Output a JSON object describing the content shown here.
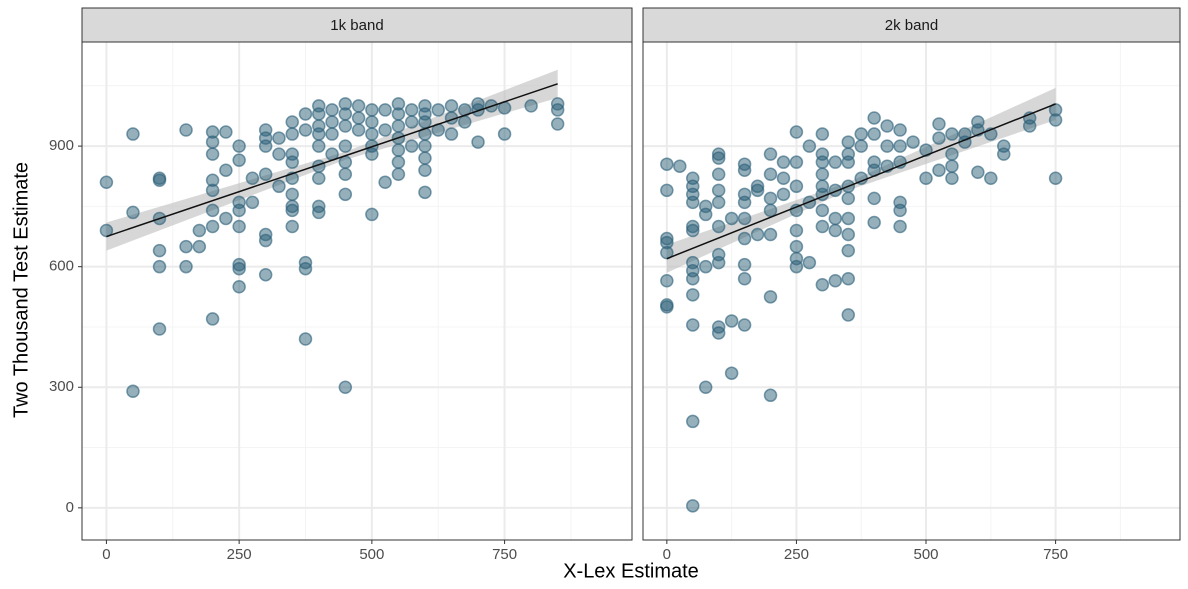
{
  "chart_data": {
    "type": "scatter",
    "xlabel": "X-Lex Estimate",
    "ylabel": "Two Thousand Test Estimate",
    "xlim": [
      -46,
      990
    ],
    "ylim": [
      -80,
      1159
    ],
    "xticks": [
      0,
      250,
      500,
      750
    ],
    "yticks": [
      0,
      300,
      600,
      900
    ],
    "minor_xgrid": [
      125,
      375,
      625,
      875
    ],
    "minor_ygrid": [
      150,
      450,
      750,
      1050
    ],
    "grid": true,
    "color": "#2b5f78",
    "fit_color": "#111111",
    "band_color": "#bdbdbd",
    "panels": [
      {
        "title": "1k band",
        "x": [
          0,
          0,
          50,
          50,
          50,
          100,
          100,
          100,
          100,
          100,
          100,
          150,
          150,
          150,
          175,
          175,
          200,
          200,
          200,
          200,
          200,
          200,
          200,
          200,
          225,
          225,
          225,
          250,
          250,
          250,
          250,
          250,
          250,
          250,
          250,
          275,
          275,
          300,
          300,
          300,
          300,
          300,
          300,
          300,
          325,
          325,
          325,
          350,
          350,
          350,
          350,
          350,
          350,
          350,
          350,
          350,
          375,
          375,
          375,
          375,
          375,
          400,
          400,
          400,
          400,
          400,
          400,
          400,
          400,
          400,
          425,
          425,
          425,
          425,
          450,
          450,
          450,
          450,
          450,
          450,
          450,
          450,
          475,
          475,
          475,
          500,
          500,
          500,
          500,
          500,
          500,
          525,
          525,
          525,
          550,
          550,
          550,
          550,
          550,
          550,
          550,
          575,
          575,
          575,
          600,
          600,
          600,
          600,
          600,
          600,
          600,
          600,
          625,
          625,
          650,
          650,
          650,
          675,
          675,
          700,
          700,
          700,
          725,
          750,
          750,
          800,
          850,
          850,
          850
        ],
        "y": [
          810,
          690,
          930,
          735,
          290,
          820,
          815,
          720,
          640,
          600,
          445,
          940,
          650,
          600,
          690,
          650,
          935,
          910,
          880,
          815,
          790,
          740,
          700,
          470,
          935,
          840,
          720,
          900,
          865,
          760,
          740,
          700,
          605,
          595,
          550,
          820,
          760,
          940,
          920,
          900,
          830,
          680,
          665,
          580,
          920,
          880,
          800,
          960,
          930,
          880,
          860,
          820,
          780,
          750,
          740,
          700,
          980,
          940,
          610,
          595,
          420,
          1000,
          980,
          950,
          930,
          900,
          850,
          820,
          750,
          735,
          990,
          960,
          930,
          880,
          1005,
          980,
          950,
          900,
          860,
          830,
          780,
          300,
          1000,
          970,
          940,
          990,
          960,
          930,
          900,
          880,
          730,
          990,
          940,
          810,
          1005,
          980,
          950,
          920,
          890,
          860,
          830,
          990,
          960,
          900,
          1000,
          980,
          960,
          930,
          900,
          870,
          840,
          785,
          990,
          940,
          1000,
          970,
          930,
          990,
          960,
          1005,
          990,
          910,
          1000,
          995,
          930,
          1000,
          1005,
          990,
          955
        ],
        "fit": {
          "x": [
            0,
            450,
            850
          ],
          "y": [
            675,
            876,
            1055
          ],
          "lower": [
            640,
            866,
            1020
          ],
          "upper": [
            710,
            886,
            1090
          ]
        }
      },
      {
        "title": "2k band",
        "x": [
          0,
          0,
          0,
          0,
          0,
          0,
          0,
          0,
          25,
          50,
          50,
          50,
          50,
          50,
          50,
          50,
          50,
          50,
          50,
          50,
          50,
          50,
          75,
          75,
          75,
          75,
          100,
          100,
          100,
          100,
          100,
          100,
          100,
          100,
          100,
          100,
          125,
          125,
          125,
          150,
          150,
          150,
          150,
          150,
          150,
          150,
          150,
          150,
          175,
          175,
          175,
          200,
          200,
          200,
          200,
          200,
          200,
          200,
          225,
          225,
          225,
          250,
          250,
          250,
          250,
          250,
          250,
          250,
          250,
          275,
          275,
          275,
          300,
          300,
          300,
          300,
          300,
          300,
          300,
          300,
          300,
          325,
          325,
          325,
          325,
          325,
          350,
          350,
          350,
          350,
          350,
          350,
          350,
          350,
          350,
          350,
          375,
          375,
          375,
          400,
          400,
          400,
          400,
          400,
          400,
          425,
          425,
          425,
          450,
          450,
          450,
          450,
          450,
          450,
          475,
          500,
          500,
          525,
          525,
          525,
          550,
          550,
          550,
          550,
          575,
          575,
          600,
          600,
          600,
          625,
          625,
          650,
          650,
          700,
          700,
          750,
          750,
          750
        ],
        "y": [
          855,
          790,
          670,
          660,
          635,
          565,
          505,
          500,
          850,
          820,
          800,
          780,
          760,
          700,
          690,
          610,
          590,
          570,
          530,
          455,
          215,
          5,
          750,
          730,
          600,
          300,
          880,
          870,
          830,
          790,
          760,
          700,
          630,
          610,
          450,
          435,
          720,
          465,
          335,
          855,
          840,
          780,
          760,
          720,
          670,
          605,
          570,
          455,
          800,
          790,
          680,
          880,
          830,
          770,
          740,
          680,
          525,
          280,
          860,
          820,
          780,
          935,
          860,
          800,
          740,
          690,
          650,
          620,
          600,
          900,
          760,
          610,
          930,
          880,
          860,
          830,
          800,
          780,
          740,
          700,
          555,
          860,
          790,
          720,
          690,
          565,
          910,
          880,
          860,
          800,
          770,
          720,
          680,
          640,
          570,
          480,
          930,
          900,
          820,
          970,
          930,
          860,
          840,
          770,
          710,
          950,
          900,
          850,
          940,
          900,
          860,
          760,
          740,
          700,
          910,
          890,
          820,
          955,
          920,
          840,
          930,
          880,
          850,
          820,
          930,
          910,
          960,
          940,
          835,
          930,
          820,
          900,
          880,
          970,
          950,
          990,
          965,
          820
        ],
        "fit": {
          "x": [
            0,
            350,
            750
          ],
          "y": [
            620,
            800,
            1005
          ],
          "lower": [
            585,
            790,
            965
          ],
          "upper": [
            655,
            810,
            1045
          ]
        }
      }
    ]
  }
}
